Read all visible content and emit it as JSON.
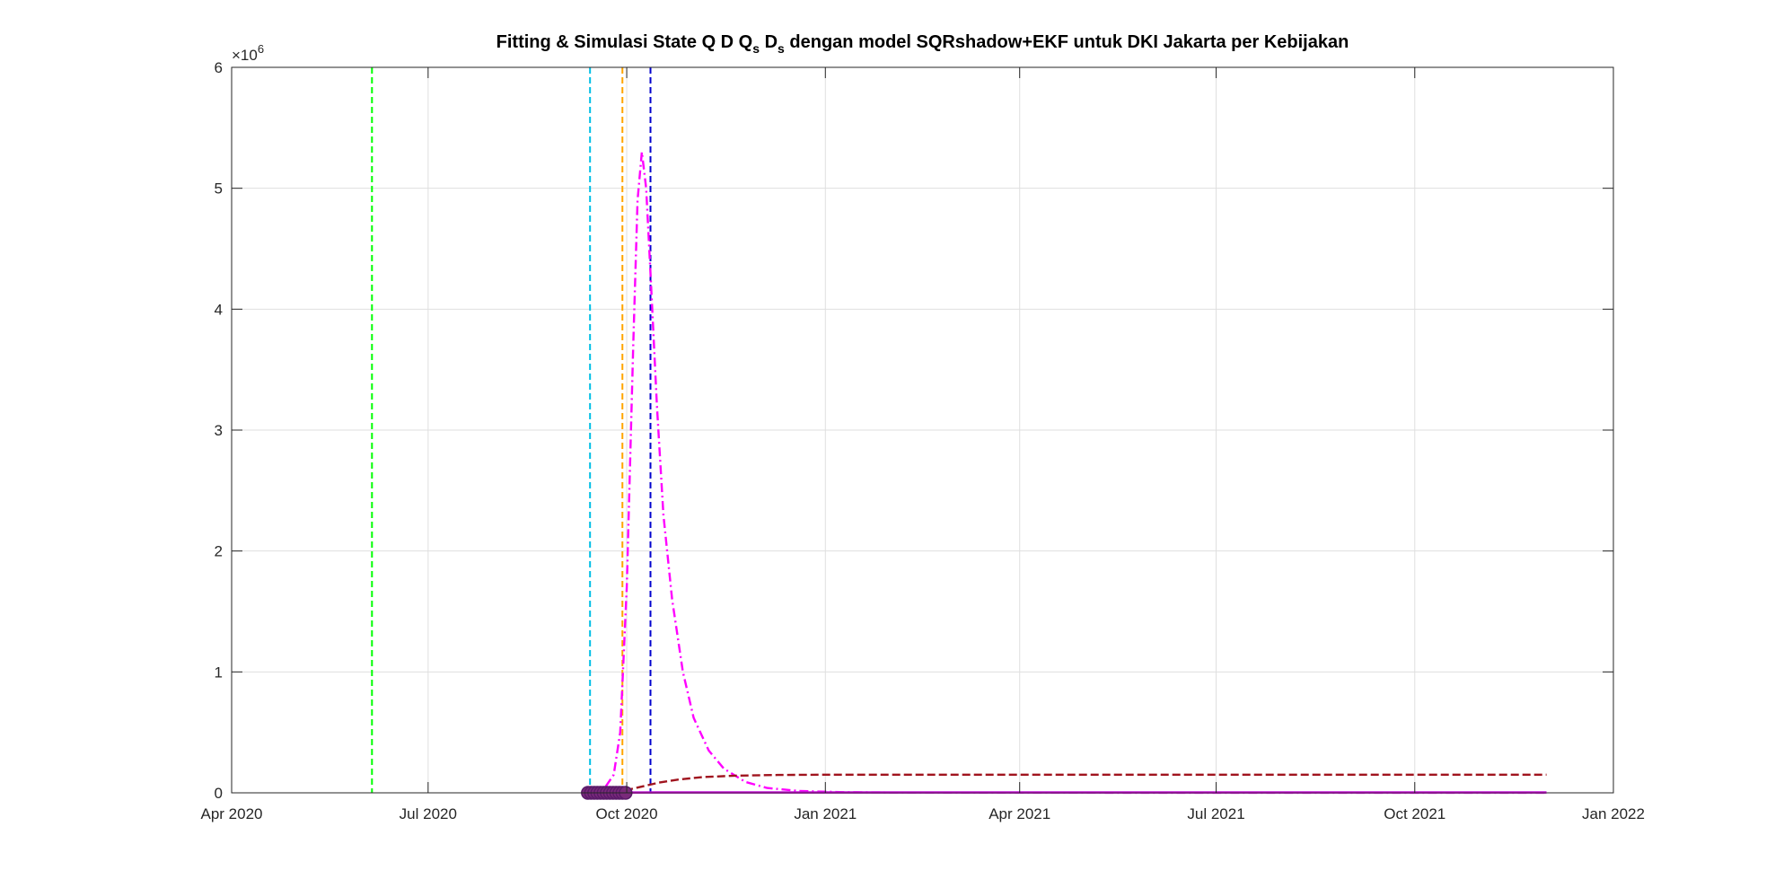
{
  "chart_data": {
    "type": "line",
    "title": {
      "prefix": "Fitting & Simulasi State  Q D Q",
      "sub1": "s",
      "mid": " D",
      "sub2": "s",
      "suffix": " dengan model SQRshadow+EKF untuk DKI Jakarta per Kebijakan"
    },
    "xlabel": "",
    "ylabel": "",
    "y_exponent_label": "×10",
    "y_exponent_power": "6",
    "xlim": [
      "2020-04-01",
      "2022-01-01"
    ],
    "ylim": [
      0,
      6
    ],
    "y_ticks": [
      0,
      1,
      2,
      3,
      4,
      5,
      6
    ],
    "y_tick_labels": [
      "0",
      "1",
      "2",
      "3",
      "4",
      "5",
      "6"
    ],
    "x_ticks": [
      "2020-04-01",
      "2020-07-01",
      "2020-10-01",
      "2021-01-01",
      "2021-04-01",
      "2021-07-01",
      "2021-10-01",
      "2022-01-01"
    ],
    "x_tick_labels": [
      "Apr 2020",
      "Jul 2020",
      "Oct 2020",
      "Jan 2021",
      "Apr 2021",
      "Jul 2021",
      "Oct 2021",
      "Jan 2022"
    ],
    "grid": true,
    "policy_lines": [
      {
        "date": "2020-06-05",
        "color": "#00ff00"
      },
      {
        "date": "2020-09-14",
        "color": "#00bfe6"
      },
      {
        "date": "2020-09-29",
        "color": "#ffa500"
      },
      {
        "date": "2020-10-12",
        "color": "#0000cd"
      }
    ],
    "series": [
      {
        "color": "#ff00ff",
        "style": "dashdot",
        "x": [
          "2020-09-14",
          "2020-09-20",
          "2020-09-25",
          "2020-09-28",
          "2020-10-01",
          "2020-10-04",
          "2020-10-06",
          "2020-10-08",
          "2020-10-10",
          "2020-10-12",
          "2020-10-15",
          "2020-10-18",
          "2020-10-22",
          "2020-10-27",
          "2020-11-01",
          "2020-11-08",
          "2020-11-15",
          "2020-11-25",
          "2020-12-05",
          "2020-12-20",
          "2021-01-10",
          "2021-02-01",
          "2021-06-01",
          "2021-12-01"
        ],
        "y": [
          0,
          0.02,
          0.15,
          0.5,
          1.7,
          3.7,
          4.9,
          5.3,
          5.0,
          4.3,
          3.2,
          2.3,
          1.6,
          1.0,
          0.62,
          0.35,
          0.2,
          0.09,
          0.04,
          0.015,
          0.005,
          0.002,
          0.001,
          0.001
        ]
      },
      {
        "color": "#a0141e",
        "style": "dashed",
        "x": [
          "2020-09-14",
          "2020-09-22",
          "2020-09-28",
          "2020-10-04",
          "2020-10-10",
          "2020-10-16",
          "2020-10-25",
          "2020-11-05",
          "2020-11-20",
          "2020-12-10",
          "2021-01-01",
          "2021-06-01",
          "2021-12-01"
        ],
        "y": [
          0.005,
          0.008,
          0.015,
          0.035,
          0.06,
          0.085,
          0.11,
          0.13,
          0.142,
          0.148,
          0.15,
          0.15,
          0.15
        ]
      },
      {
        "color": "#3a3a8c",
        "style": "solid",
        "x": [
          "2020-09-14",
          "2020-10-15",
          "2021-01-01",
          "2021-06-01",
          "2021-12-01"
        ],
        "y": [
          0.002,
          0.004,
          0.004,
          0.004,
          0.004
        ]
      },
      {
        "color": "#ff00ff",
        "style": "solid",
        "x": [
          "2020-09-14",
          "2020-10-15",
          "2021-01-01",
          "2021-12-01"
        ],
        "y": [
          0.001,
          0.002,
          0.002,
          0.002
        ]
      }
    ],
    "observed_points": {
      "color": "#7a2a7a",
      "edge": "#5a1a6a",
      "x_start": "2020-09-13",
      "x_end": "2020-10-01",
      "y": 0.0
    }
  }
}
